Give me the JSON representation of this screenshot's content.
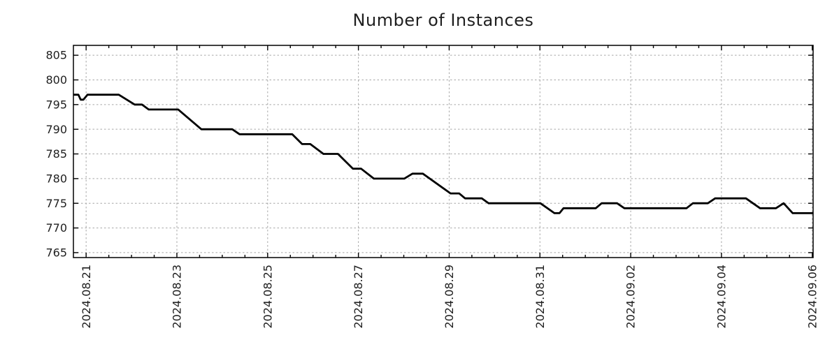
{
  "chart_data": {
    "type": "line",
    "title": "Number of Instances",
    "xlabel": "",
    "ylabel": "",
    "legend": "none",
    "grid": "dashed on major ticks, both axes",
    "x_unit": "days since 2024.08.21",
    "xlim_days": [
      -0.28,
      16.02
    ],
    "ylim": [
      764,
      807
    ],
    "y_ticks": [
      765,
      770,
      775,
      780,
      785,
      790,
      795,
      800,
      805
    ],
    "x_major_ticks": [
      {
        "day": 0,
        "label": "2024.08.21"
      },
      {
        "day": 2,
        "label": "2024.08.23"
      },
      {
        "day": 4,
        "label": "2024.08.25"
      },
      {
        "day": 6,
        "label": "2024.08.27"
      },
      {
        "day": 8,
        "label": "2024.08.29"
      },
      {
        "day": 10,
        "label": "2024.08.31"
      },
      {
        "day": 12,
        "label": "2024.09.02"
      },
      {
        "day": 14,
        "label": "2024.09.04"
      },
      {
        "day": 16,
        "label": "2024.09.06"
      }
    ],
    "x_minor_step_days": 0.5,
    "colors": {
      "line": "#000000",
      "grid": "#a6a6a6",
      "border": "#000000",
      "text": "#1f1f1f",
      "background": "#ffffff"
    },
    "series": [
      {
        "name": "instances",
        "color": "#000000",
        "line_width": 2.8,
        "points": [
          [
            -0.28,
            797
          ],
          [
            -0.17,
            797
          ],
          [
            -0.12,
            796
          ],
          [
            -0.06,
            796
          ],
          [
            0.03,
            797
          ],
          [
            0.72,
            797
          ],
          [
            1.07,
            795
          ],
          [
            1.23,
            795
          ],
          [
            1.38,
            794
          ],
          [
            2.03,
            794
          ],
          [
            2.54,
            790
          ],
          [
            3.22,
            790
          ],
          [
            3.38,
            789
          ],
          [
            4.54,
            789
          ],
          [
            4.76,
            787
          ],
          [
            4.94,
            787
          ],
          [
            5.23,
            785
          ],
          [
            5.55,
            785
          ],
          [
            5.88,
            782
          ],
          [
            6.06,
            782
          ],
          [
            6.34,
            780
          ],
          [
            7.01,
            780
          ],
          [
            7.19,
            781
          ],
          [
            7.42,
            781
          ],
          [
            8.03,
            777
          ],
          [
            8.22,
            777
          ],
          [
            8.35,
            776
          ],
          [
            8.72,
            776
          ],
          [
            8.87,
            775
          ],
          [
            10.01,
            775
          ],
          [
            10.32,
            773
          ],
          [
            10.43,
            773
          ],
          [
            10.52,
            774
          ],
          [
            11.23,
            774
          ],
          [
            11.36,
            775
          ],
          [
            11.7,
            775
          ],
          [
            11.86,
            774
          ],
          [
            13.23,
            774
          ],
          [
            13.37,
            775
          ],
          [
            13.7,
            775
          ],
          [
            13.86,
            776
          ],
          [
            14.54,
            776
          ],
          [
            14.85,
            774
          ],
          [
            15.2,
            774
          ],
          [
            15.37,
            775
          ],
          [
            15.57,
            773
          ],
          [
            16.02,
            773
          ]
        ]
      }
    ]
  }
}
